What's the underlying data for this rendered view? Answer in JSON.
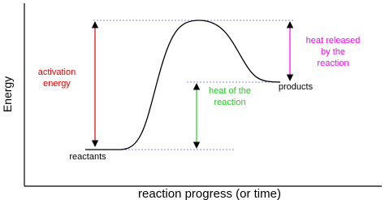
{
  "axes": {
    "y_label": "Energy",
    "x_label": "reaction progress (or time)"
  },
  "levels": {
    "reactants": "reactants",
    "products": "products"
  },
  "annotations": {
    "activation_energy": [
      "activation",
      "energy"
    ],
    "heat_of_reaction": [
      "heat of the",
      "reaction"
    ],
    "heat_released": [
      "heat released",
      "by the",
      "reaction"
    ]
  }
}
